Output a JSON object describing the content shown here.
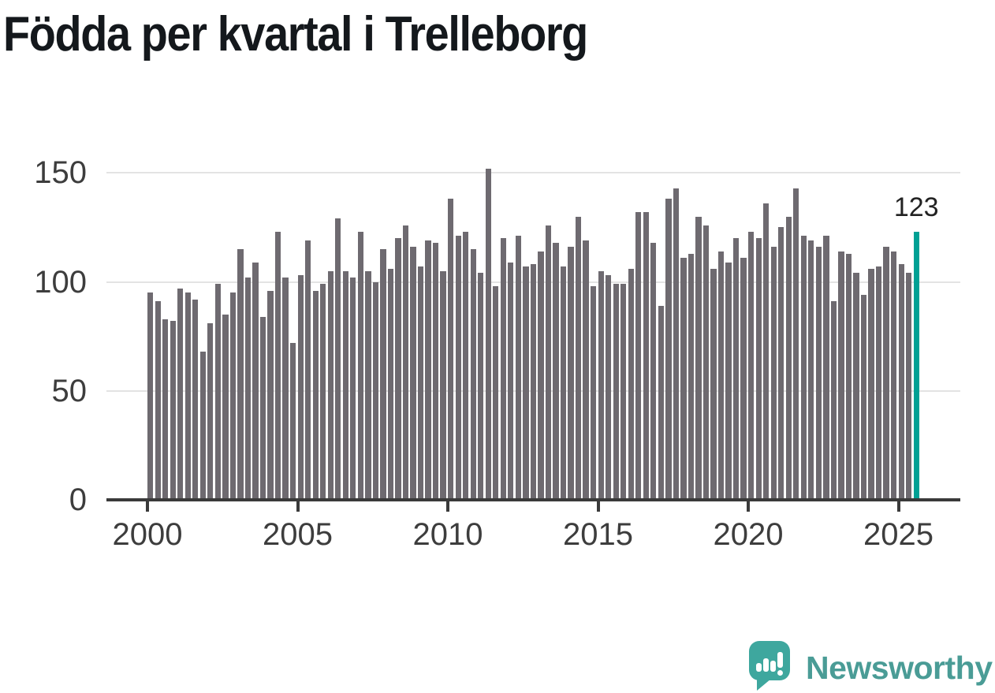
{
  "chart_data": {
    "type": "bar",
    "title": "Födda per kvartal i Trelleborg",
    "frequency": "quarterly",
    "start_quarter": "2000-Q1",
    "end_quarter": "2025-Q3",
    "values": [
      95,
      91,
      83,
      82,
      97,
      95,
      92,
      68,
      81,
      99,
      85,
      95,
      115,
      102,
      109,
      84,
      96,
      123,
      102,
      72,
      103,
      119,
      96,
      99,
      105,
      129,
      105,
      102,
      123,
      105,
      100,
      115,
      106,
      120,
      126,
      116,
      107,
      119,
      118,
      105,
      138,
      121,
      123,
      115,
      104,
      152,
      98,
      120,
      109,
      121,
      107,
      108,
      114,
      126,
      118,
      107,
      116,
      130,
      119,
      98,
      105,
      103,
      99,
      99,
      106,
      132,
      132,
      118,
      89,
      138,
      143,
      111,
      113,
      130,
      126,
      106,
      114,
      109,
      120,
      111,
      123,
      120,
      136,
      116,
      125,
      130,
      143,
      121,
      119,
      116,
      121,
      91,
      114,
      113,
      104,
      94,
      106,
      107,
      116,
      114,
      108,
      104,
      123
    ],
    "highlight_index": 102,
    "value_label": "123",
    "x_tick_labels": [
      "2000",
      "2005",
      "2010",
      "2015",
      "2020",
      "2025"
    ],
    "x_tick_bar_indices": [
      0,
      20,
      40,
      60,
      80,
      100
    ],
    "y_tick_labels": [
      "0",
      "50",
      "100",
      "150"
    ],
    "y_tick_values": [
      0,
      50,
      100,
      150
    ],
    "ylim": [
      0,
      160
    ],
    "grid": "horizontal",
    "xlabel": "",
    "ylabel": "",
    "colors": {
      "bar": "#6e6a70",
      "highlight": "#00a094",
      "grid": "#e3e3e3",
      "axis": "#3a3a3a",
      "tick_label": "#3d3d3d",
      "title": "#14181c",
      "value_label": "#222222",
      "background": "#ffffff"
    }
  },
  "branding": {
    "logo_text": "Newsworthy",
    "logo_text_color": "#4a9c96",
    "logo_icon_color": "#3ea79e"
  }
}
